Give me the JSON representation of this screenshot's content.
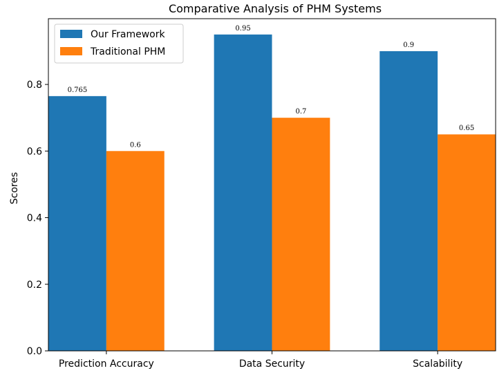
{
  "chart_data": {
    "type": "bar",
    "title": "Comparative Analysis of PHM Systems",
    "xlabel": "",
    "ylabel": "Scores",
    "categories": [
      "Prediction Accuracy",
      "Data Security",
      "Scalability"
    ],
    "series": [
      {
        "name": "Our Framework",
        "values": [
          0.765,
          0.95,
          0.9
        ],
        "labels": [
          "0.765",
          "0.95",
          "0.9"
        ],
        "color": "#1f77b4"
      },
      {
        "name": "Traditional PHM",
        "values": [
          0.6,
          0.7,
          0.65
        ],
        "labels": [
          "0.6",
          "0.7",
          "0.65"
        ],
        "color": "#ff7f0e"
      }
    ],
    "ylim": [
      0,
      0.9975
    ],
    "yticks": [
      0.0,
      0.2,
      0.4,
      0.6,
      0.8
    ],
    "ytick_labels": [
      "0.0",
      "0.2",
      "0.4",
      "0.6",
      "0.8"
    ],
    "grid": false,
    "legend_position": "top-left"
  }
}
